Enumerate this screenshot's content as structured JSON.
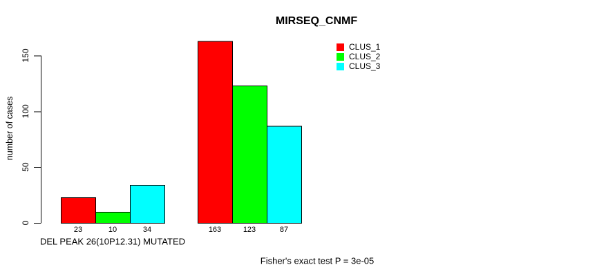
{
  "chart_data": {
    "type": "bar",
    "title": "MIRSEQ_CNMF",
    "ylabel": "number of cases",
    "xlabel": "DEL PEAK 26(10P12.31) MUTATED",
    "annotation": "Fisher's exact test P = 3e-05",
    "categories": [
      "DEL PEAK 26(10P12.31) MUTATED",
      ""
    ],
    "series": [
      {
        "name": "CLUS_1",
        "color": "#ff0000",
        "values": [
          23,
          163
        ]
      },
      {
        "name": "CLUS_2",
        "color": "#00ff00",
        "values": [
          10,
          123
        ]
      },
      {
        "name": "CLUS_3",
        "color": "#00ffff",
        "values": [
          34,
          87
        ]
      }
    ],
    "bar_value_labels": [
      [
        23,
        10,
        34
      ],
      [
        163,
        123,
        87
      ]
    ],
    "yticks": [
      0,
      50,
      100,
      150
    ],
    "ylim": [
      0,
      163
    ],
    "grid": false,
    "legend_position": "top-right",
    "axis_color": "#000000",
    "bar_border_color": "#000000",
    "background_color": "#ffffff"
  }
}
